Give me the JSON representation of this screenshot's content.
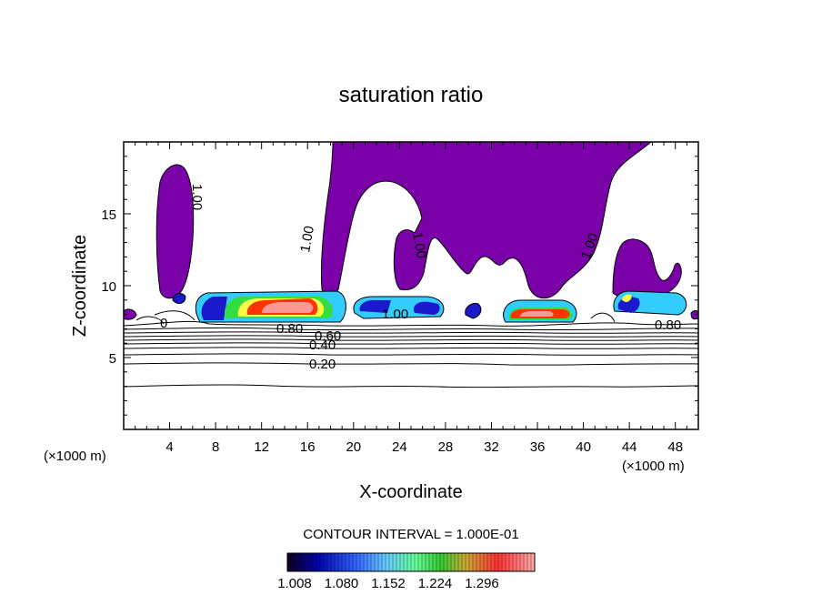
{
  "chart_data": {
    "type": "contour",
    "title": "saturation ratio",
    "xlabel": "X-coordinate",
    "ylabel": "Z-coordinate",
    "x_unit_label_left": "(×1000 m)",
    "x_unit_label_right": "(×1000 m)",
    "xlim": [
      0,
      50
    ],
    "ylim": [
      0,
      20
    ],
    "x_ticks": [
      4,
      8,
      12,
      16,
      20,
      24,
      28,
      32,
      36,
      40,
      44,
      48
    ],
    "x_tick_labels": [
      "4",
      "8",
      "12",
      "16",
      "20",
      "24",
      "28",
      "32",
      "36",
      "40",
      "44",
      "48"
    ],
    "y_ticks": [
      5,
      10,
      15
    ],
    "y_tick_labels": [
      "5",
      "10",
      "15"
    ],
    "contour_interval_text": "CONTOUR INTERVAL = 1.000E-01",
    "contour_labels": [
      {
        "text": "0.20",
        "x": 17.5,
        "y": 4.6
      },
      {
        "text": "0.40",
        "x": 17.2,
        "y": 5.8
      },
      {
        "text": "0.60",
        "x": 17.8,
        "y": 6.5
      },
      {
        "text": "0.80",
        "x": 14.6,
        "y": 7.1
      },
      {
        "text": "0.80",
        "x": 47.0,
        "y": 7.2
      },
      {
        "text": "1.00",
        "x": 23.8,
        "y": 8.0
      },
      {
        "text": "1.00",
        "x": 6.4,
        "y": 16.0
      },
      {
        "text": "1.00",
        "x": 16.8,
        "y": 13.2
      },
      {
        "text": "1.00",
        "x": 25.2,
        "y": 12.8
      },
      {
        "text": "1.00",
        "x": 40.5,
        "y": 12.6
      },
      {
        "text": "0",
        "x": 3.5,
        "y": 7.3
      }
    ],
    "colorbar": {
      "tick_labels": [
        "1.008",
        "1.080",
        "1.152",
        "1.224",
        "1.296"
      ],
      "colors": [
        "#000066",
        "#2a2ad8",
        "#6aa6ff",
        "#aaffcc",
        "#44dd44",
        "#ffcc33",
        "#ff5533",
        "#ffaaaa"
      ]
    },
    "fill_colors": {
      "saturated_region": "#7a00a8",
      "low_excess": "#1a1acc",
      "mid_excess": "#33ccff",
      "green": "#33dd44",
      "yellow": "#ffff44",
      "red": "#ff3300",
      "pink": "#ff9999"
    }
  }
}
